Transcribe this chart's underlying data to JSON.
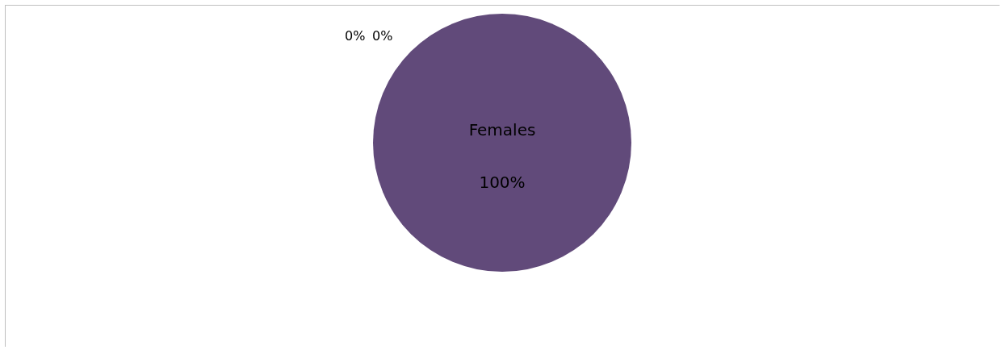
{
  "chart_data": {
    "type": "pie",
    "categories": [
      "Females",
      null,
      null
    ],
    "values": [
      100,
      0,
      0
    ],
    "colors": [
      "#614a7a",
      "#4f81bd",
      "#c0504d"
    ],
    "value_labels": [
      "100%",
      "0%",
      "0%"
    ]
  }
}
